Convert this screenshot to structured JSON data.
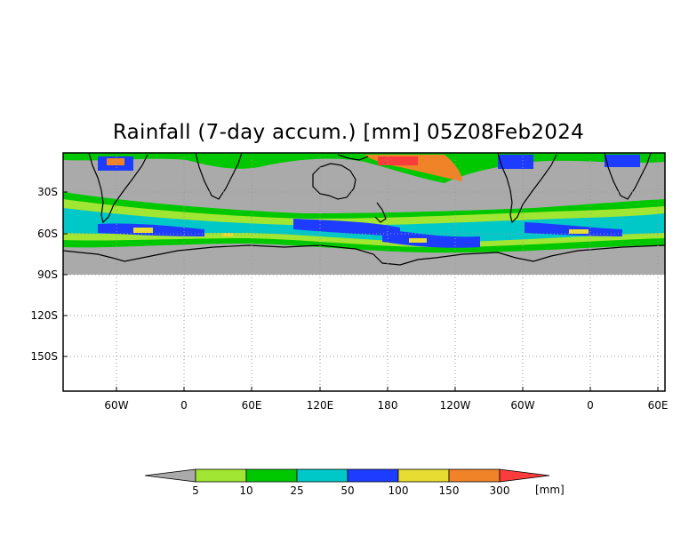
{
  "title": "Rainfall (7-day accum.) [mm] 05Z08Feb2024",
  "map": {
    "y_labels": [
      "30S",
      "60S",
      "90S",
      "120S",
      "150S"
    ],
    "x_labels": [
      "60W",
      "0",
      "60E",
      "120E",
      "180",
      "120W",
      "60W",
      "0",
      "60E"
    ],
    "background_land_color": "#aaaaaa",
    "frame_color": "#000000"
  },
  "colorbar": {
    "unit": "[mm]",
    "levels": [
      "5",
      "10",
      "25",
      "50",
      "100",
      "150",
      "300"
    ],
    "colors": [
      "#aaaaaa",
      "#a0e632",
      "#00c800",
      "#00c8c8",
      "#1e3cff",
      "#e6dc32",
      "#f08228",
      "#fa3c3c"
    ]
  }
}
